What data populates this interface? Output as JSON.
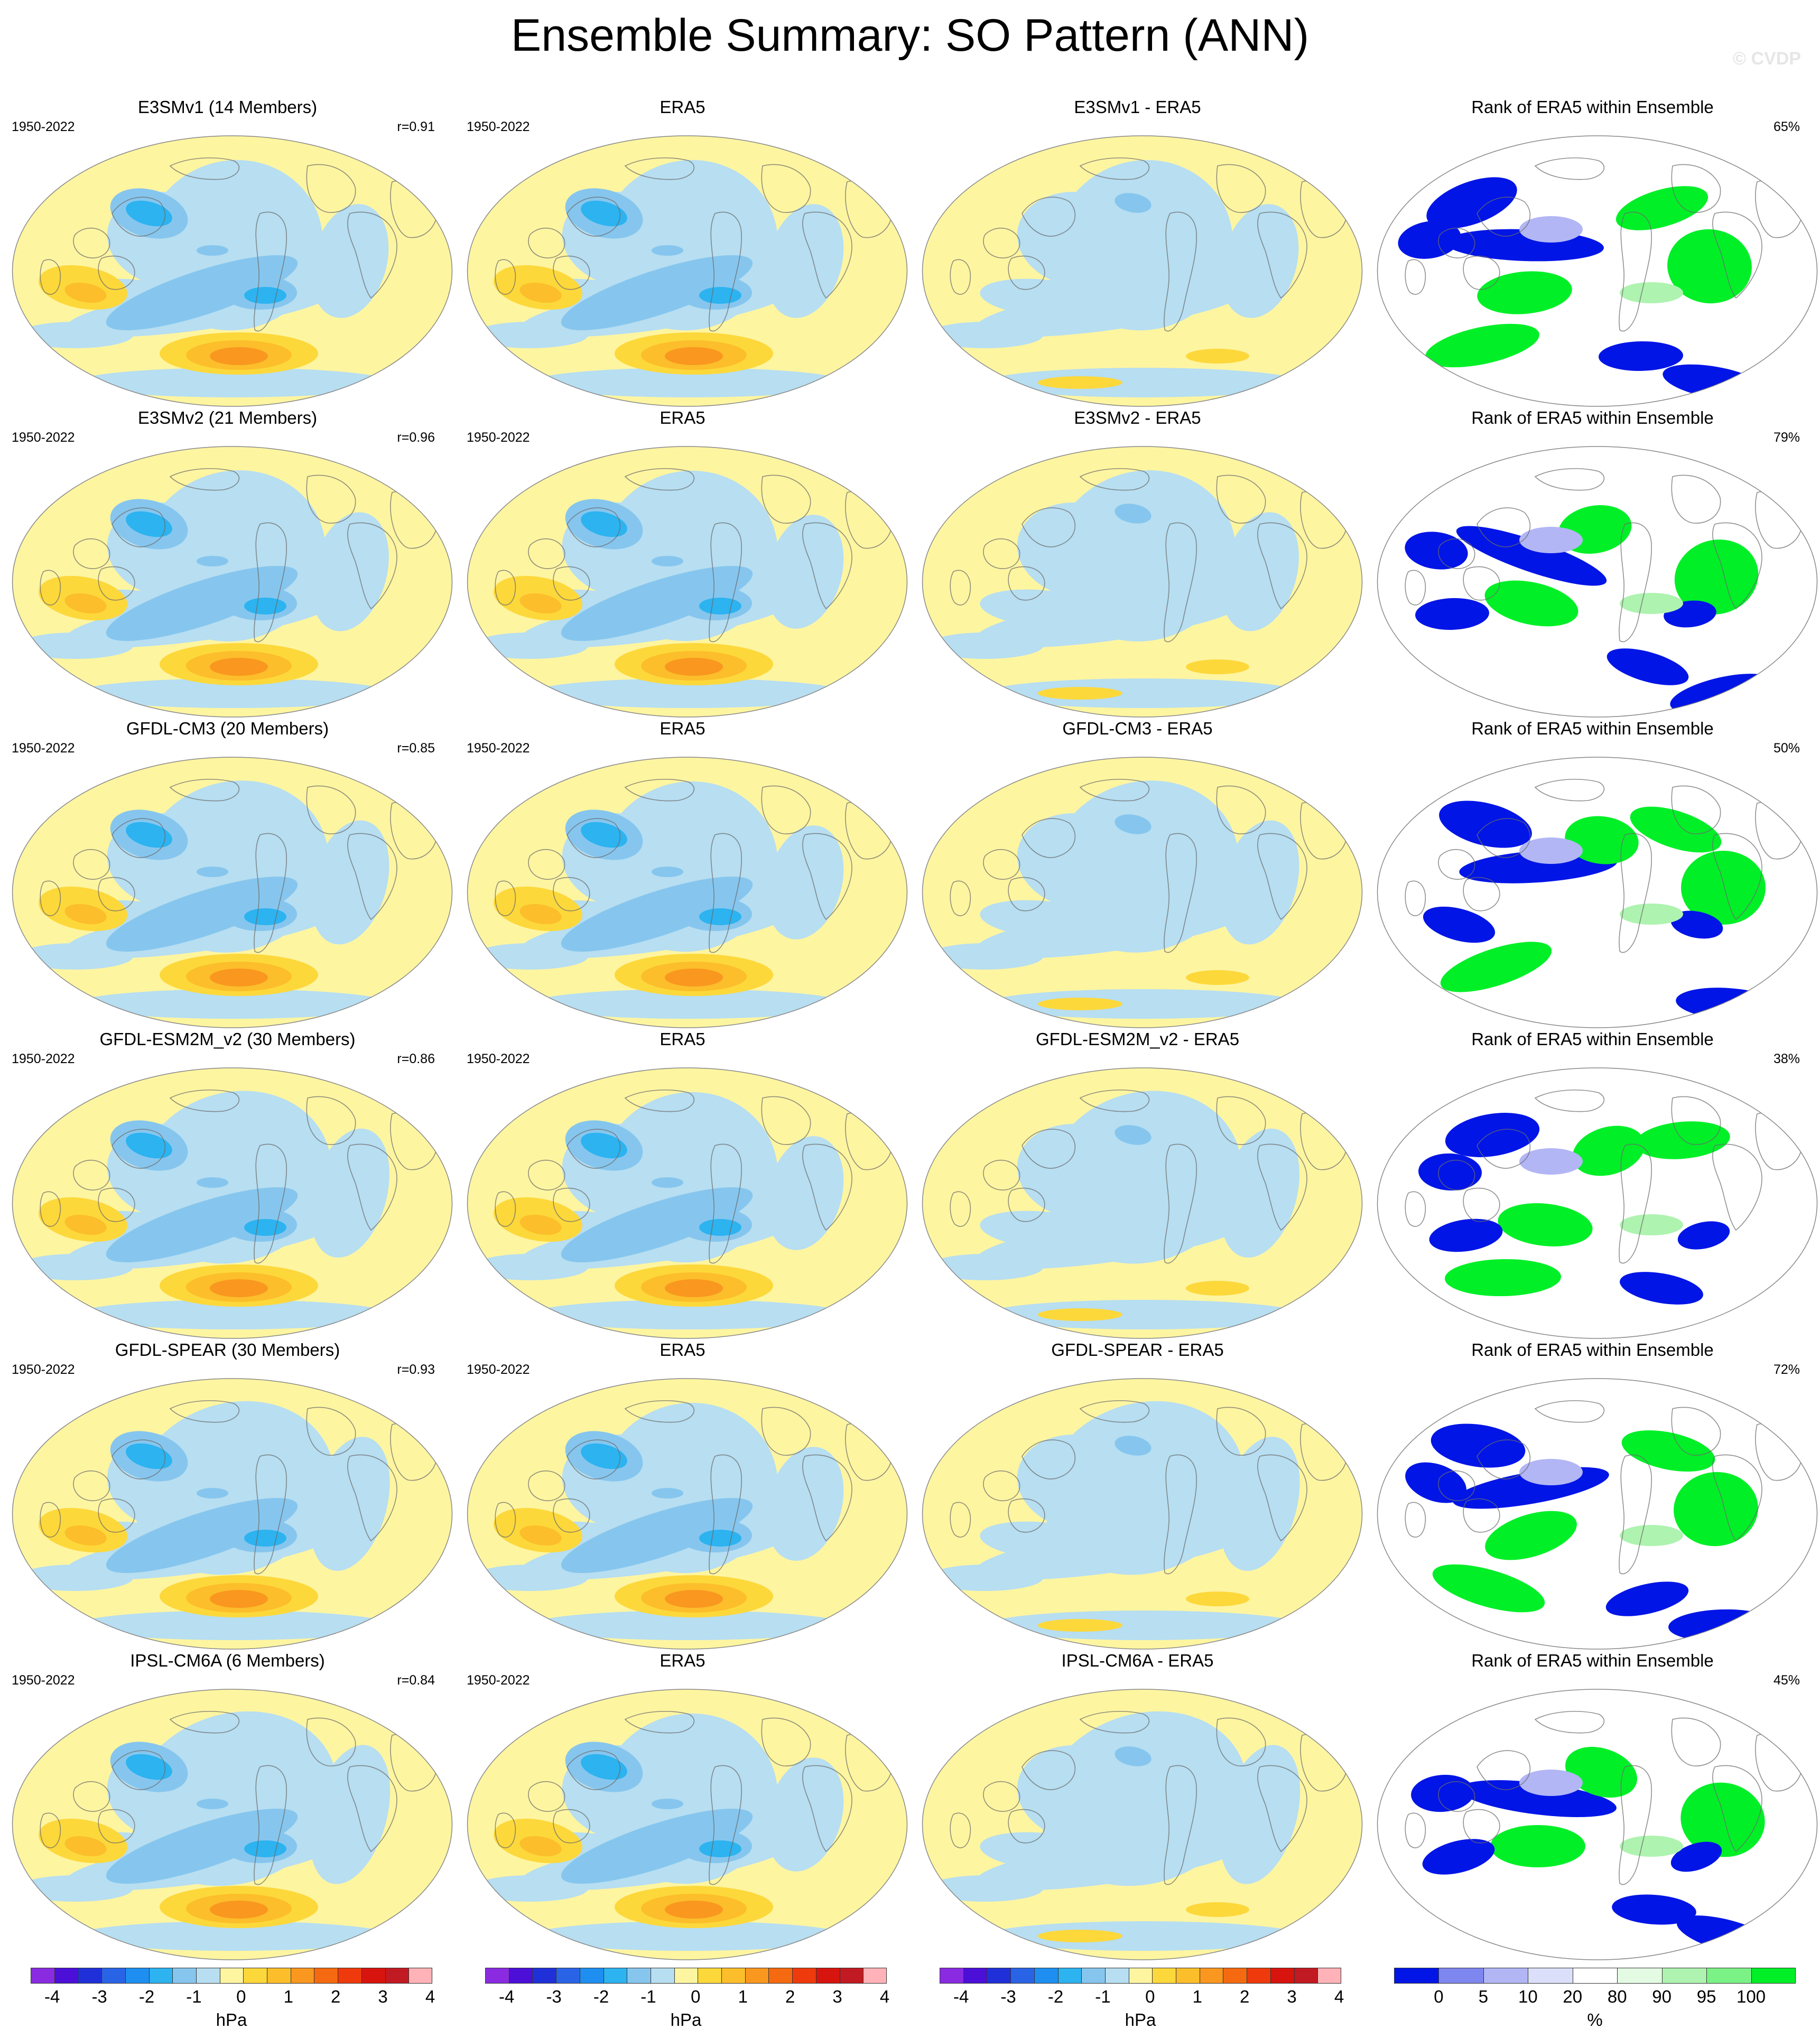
{
  "title": "Ensemble Summary: SO Pattern (ANN)",
  "watermark": "© CVDP",
  "icons": {
    "map": "globe-map-icon"
  },
  "colors": {
    "pos1": "#fef5a1",
    "pos2": "#fdd83b",
    "pos3": "#fcbe2b",
    "pos4": "#f9971f",
    "neg1": "#b7def1",
    "neg2": "#86c6ee",
    "neg3": "#2cb3f0",
    "rank_low": "#0015e6",
    "rank_high": "#00ef27"
  },
  "rows": [
    {
      "model": "E3SMv1 (14 Members)",
      "period": "1950-2022",
      "correlation": "r=0.91",
      "obs_title": "ERA5",
      "obs_period": "1950-2022",
      "diff_title": "E3SMv1 - ERA5",
      "rank_title": "Rank of ERA5 within Ensemble",
      "rank_pct": "65%"
    },
    {
      "model": "E3SMv2 (21 Members)",
      "period": "1950-2022",
      "correlation": "r=0.96",
      "obs_title": "ERA5",
      "obs_period": "1950-2022",
      "diff_title": "E3SMv2 - ERA5",
      "rank_title": "Rank of ERA5 within Ensemble",
      "rank_pct": "79%"
    },
    {
      "model": "GFDL-CM3 (20 Members)",
      "period": "1950-2022",
      "correlation": "r=0.85",
      "obs_title": "ERA5",
      "obs_period": "1950-2022",
      "diff_title": "GFDL-CM3 - ERA5",
      "rank_title": "Rank of ERA5 within Ensemble",
      "rank_pct": "50%"
    },
    {
      "model": "GFDL-ESM2M_v2 (30 Members)",
      "period": "1950-2022",
      "correlation": "r=0.86",
      "obs_title": "ERA5",
      "obs_period": "1950-2022",
      "diff_title": "GFDL-ESM2M_v2 - ERA5",
      "rank_title": "Rank of ERA5 within Ensemble",
      "rank_pct": "38%"
    },
    {
      "model": "GFDL-SPEAR (30 Members)",
      "period": "1950-2022",
      "correlation": "r=0.93",
      "obs_title": "ERA5",
      "obs_period": "1950-2022",
      "diff_title": "GFDL-SPEAR - ERA5",
      "rank_title": "Rank of ERA5 within Ensemble",
      "rank_pct": "72%"
    },
    {
      "model": "IPSL-CM6A (6 Members)",
      "period": "1950-2022",
      "correlation": "r=0.84",
      "obs_title": "ERA5",
      "obs_period": "1950-2022",
      "diff_title": "IPSL-CM6A - ERA5",
      "rank_title": "Rank of ERA5 within Ensemble",
      "rank_pct": "45%"
    }
  ],
  "colorbars": {
    "pressure": {
      "unit": "hPa",
      "ticks": [
        "-4",
        "-3",
        "-2",
        "-1",
        "0",
        "1",
        "2",
        "3",
        "4"
      ],
      "colors": [
        "#8a2be2",
        "#4b0fd8",
        "#2030d8",
        "#2a64e6",
        "#1e8ff0",
        "#2cb3f0",
        "#86c6ee",
        "#b7def1",
        "#fef5a1",
        "#fdd83b",
        "#fcbe2b",
        "#f9971f",
        "#f56a10",
        "#ee3a0c",
        "#d8140e",
        "#c21a22",
        "#ffb3b8"
      ]
    },
    "rank": {
      "unit": "%",
      "ticks": [
        "0",
        "5",
        "10",
        "20",
        "80",
        "90",
        "95",
        "100"
      ],
      "colors": [
        "#0015e6",
        "#7e86f0",
        "#b2b6f5",
        "#dcdffa",
        "#ffffff",
        "#e3fbe3",
        "#aef3b0",
        "#7bf285",
        "#00ef27"
      ]
    }
  }
}
